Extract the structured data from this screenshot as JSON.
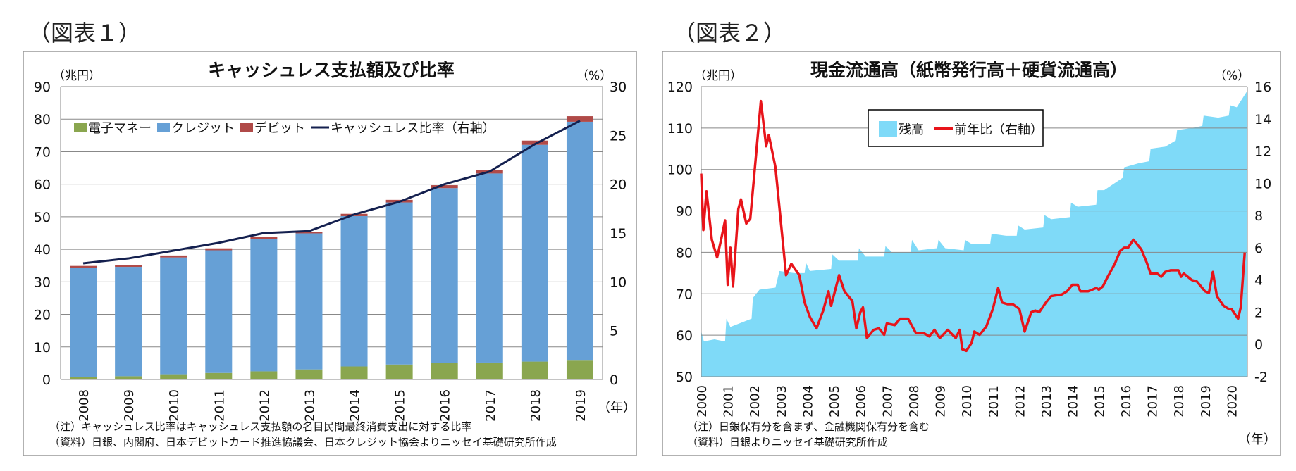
{
  "figures": [
    {
      "label": "（図表１）"
    },
    {
      "label": "（図表２）"
    }
  ],
  "chart_data": [
    {
      "type": "bar",
      "stacked": true,
      "title": "キャッシュレス支払額及び比率",
      "left_unit": "（兆円）",
      "right_unit": "（%）",
      "x_unit": "（年）",
      "categories": [
        "2008",
        "2009",
        "2010",
        "2011",
        "2012",
        "2013",
        "2014",
        "2015",
        "2016",
        "2017",
        "2018",
        "2019"
      ],
      "ylim": [
        0,
        90
      ],
      "y_ticks": [
        "0",
        "10",
        "20",
        "30",
        "40",
        "50",
        "60",
        "70",
        "80",
        "90"
      ],
      "y2lim": [
        0,
        30
      ],
      "y2_ticks": [
        "0",
        "5",
        "10",
        "15",
        "20",
        "25",
        "30"
      ],
      "grid": true,
      "legend": "top-left",
      "series": [
        {
          "name": "電子マネー",
          "kind": "bar",
          "color": "#8aa64f",
          "values": [
            0.8,
            1.0,
            1.6,
            2.0,
            2.5,
            3.1,
            4.0,
            4.6,
            5.1,
            5.2,
            5.5,
            5.8
          ]
        },
        {
          "name": "クレジット",
          "kind": "bar",
          "color": "#66a0d6",
          "values": [
            33.5,
            33.6,
            35.9,
            37.7,
            40.6,
            41.8,
            46.2,
            49.8,
            53.7,
            58.1,
            66.6,
            73.4
          ]
        },
        {
          "name": "デビット",
          "kind": "bar",
          "color": "#b04a48",
          "values": [
            0.6,
            0.6,
            0.6,
            0.6,
            0.6,
            0.5,
            0.7,
            0.8,
            0.9,
            1.1,
            1.3,
            1.7
          ]
        },
        {
          "name": "キャッシュレス比率（右軸）",
          "kind": "line",
          "axis": "right",
          "color": "#14204f",
          "values": [
            11.9,
            12.4,
            13.2,
            14.0,
            15.0,
            15.2,
            16.9,
            18.2,
            20.0,
            21.3,
            24.1,
            26.5
          ]
        }
      ],
      "notes": [
        "（注）キャッシュレス比率はキャッシュレス支払額の名目民間最終消費支出に対する比率",
        "（資料）日銀、内閣府、日本デビットカード推進協議会、日本クレジット協会よりニッセイ基礎研究所作成"
      ]
    },
    {
      "type": "area",
      "title": "現金流通高（紙幣発行高＋硬貨流通高）",
      "left_unit": "（兆円）",
      "right_unit": "（%）",
      "x_unit": "（年）",
      "x_ticks": [
        "2000",
        "2001",
        "2002",
        "2003",
        "2004",
        "2005",
        "2006",
        "2007",
        "2008",
        "2009",
        "2010",
        "2011",
        "2012",
        "2013",
        "2014",
        "2015",
        "2016",
        "2017",
        "2018",
        "2019",
        "2020"
      ],
      "xlim": [
        2000,
        2020.6
      ],
      "ylim": [
        50,
        120
      ],
      "y_ticks": [
        "50",
        "60",
        "70",
        "80",
        "90",
        "100",
        "110",
        "120"
      ],
      "y2lim": [
        -2,
        16
      ],
      "y2_ticks": [
        "-2",
        "0",
        "2",
        "4",
        "6",
        "8",
        "10",
        "12",
        "14",
        "16"
      ],
      "grid": true,
      "legend": "top-center",
      "series": [
        {
          "name": "残高",
          "kind": "area",
          "color": "#7fdaf8",
          "points": [
            [
              2000,
              61
            ],
            [
              2000.1,
              58.5
            ],
            [
              2000.5,
              59
            ],
            [
              2000.9,
              58.5
            ],
            [
              2000.95,
              64
            ],
            [
              2001.1,
              62
            ],
            [
              2001.5,
              63
            ],
            [
              2001.9,
              64
            ],
            [
              2001.95,
              69
            ],
            [
              2002.2,
              71
            ],
            [
              2002.8,
              71.5
            ],
            [
              2002.95,
              75.5
            ],
            [
              2003.5,
              75
            ],
            [
              2003.9,
              75
            ],
            [
              2003.95,
              77.5
            ],
            [
              2004.1,
              75.5
            ],
            [
              2004.9,
              76
            ],
            [
              2004.95,
              79.5
            ],
            [
              2005.2,
              78
            ],
            [
              2005.9,
              78
            ],
            [
              2005.95,
              81
            ],
            [
              2006.2,
              79
            ],
            [
              2006.9,
              79
            ],
            [
              2006.95,
              81.5
            ],
            [
              2007.2,
              80
            ],
            [
              2007.9,
              80
            ],
            [
              2007.95,
              83
            ],
            [
              2008.2,
              80.5
            ],
            [
              2008.9,
              81
            ],
            [
              2008.95,
              83
            ],
            [
              2009.2,
              81
            ],
            [
              2009.9,
              80.5
            ],
            [
              2009.95,
              83
            ],
            [
              2010.2,
              82
            ],
            [
              2010.9,
              82
            ],
            [
              2010.95,
              84.5
            ],
            [
              2011.5,
              84
            ],
            [
              2011.9,
              84
            ],
            [
              2011.95,
              86.5
            ],
            [
              2012.2,
              85.5
            ],
            [
              2012.9,
              86
            ],
            [
              2012.95,
              89
            ],
            [
              2013.2,
              88
            ],
            [
              2013.9,
              88.5
            ],
            [
              2013.95,
              92
            ],
            [
              2014.2,
              91
            ],
            [
              2014.9,
              91.5
            ],
            [
              2014.95,
              95
            ],
            [
              2015.2,
              95
            ],
            [
              2015.9,
              98
            ],
            [
              2015.95,
              100.5
            ],
            [
              2016.5,
              101.5
            ],
            [
              2016.9,
              102
            ],
            [
              2016.95,
              105
            ],
            [
              2017.5,
              105.5
            ],
            [
              2017.9,
              107
            ],
            [
              2017.95,
              109.5
            ],
            [
              2018.5,
              110
            ],
            [
              2018.9,
              110.5
            ],
            [
              2018.95,
              113
            ],
            [
              2019.5,
              112.5
            ],
            [
              2019.9,
              113
            ],
            [
              2019.95,
              115.5
            ],
            [
              2020.2,
              115
            ],
            [
              2020.6,
              119
            ]
          ]
        },
        {
          "name": "前年比（右軸）",
          "kind": "line",
          "axis": "right",
          "color": "#e8141a",
          "points": [
            [
              2000,
              10.6
            ],
            [
              2000.08,
              7.1
            ],
            [
              2000.2,
              9.5
            ],
            [
              2000.4,
              6.5
            ],
            [
              2000.6,
              5.4
            ],
            [
              2000.75,
              6.5
            ],
            [
              2000.9,
              7.7
            ],
            [
              2001,
              3.7
            ],
            [
              2001.1,
              6
            ],
            [
              2001.2,
              3.6
            ],
            [
              2001.4,
              8.4
            ],
            [
              2001.5,
              9
            ],
            [
              2001.7,
              7.5
            ],
            [
              2001.85,
              7.8
            ],
            [
              2002,
              10.5
            ],
            [
              2002.25,
              15.1
            ],
            [
              2002.45,
              12.3
            ],
            [
              2002.55,
              13
            ],
            [
              2002.8,
              11
            ],
            [
              2002.95,
              8.5
            ],
            [
              2003.1,
              6
            ],
            [
              2003.2,
              4.3
            ],
            [
              2003.4,
              5
            ],
            [
              2003.7,
              4.3
            ],
            [
              2003.9,
              2.6
            ],
            [
              2004.1,
              1.7
            ],
            [
              2004.35,
              1
            ],
            [
              2004.6,
              2.1
            ],
            [
              2004.8,
              3.3
            ],
            [
              2004.9,
              2.4
            ],
            [
              2005.2,
              4.3
            ],
            [
              2005.4,
              3.3
            ],
            [
              2005.7,
              2.7
            ],
            [
              2005.85,
              1
            ],
            [
              2006,
              2
            ],
            [
              2006.1,
              2.3
            ],
            [
              2006.25,
              0.4
            ],
            [
              2006.5,
              0.9
            ],
            [
              2006.7,
              1
            ],
            [
              2006.9,
              0.6
            ],
            [
              2007,
              1.3
            ],
            [
              2007.3,
              1.2
            ],
            [
              2007.5,
              1.6
            ],
            [
              2007.8,
              1.6
            ],
            [
              2008.1,
              0.7
            ],
            [
              2008.4,
              0.7
            ],
            [
              2008.6,
              0.5
            ],
            [
              2008.8,
              0.9
            ],
            [
              2009,
              0.4
            ],
            [
              2009.3,
              0.9
            ],
            [
              2009.6,
              0.4
            ],
            [
              2009.75,
              0.9
            ],
            [
              2009.85,
              -0.3
            ],
            [
              2010,
              -0.4
            ],
            [
              2010.2,
              0.1
            ],
            [
              2010.3,
              0.8
            ],
            [
              2010.5,
              0.6
            ],
            [
              2010.75,
              1.1
            ],
            [
              2011,
              2.2
            ],
            [
              2011.2,
              3.5
            ],
            [
              2011.35,
              2.6
            ],
            [
              2011.55,
              2.5
            ],
            [
              2011.75,
              2.5
            ],
            [
              2012,
              2.2
            ],
            [
              2012.2,
              0.8
            ],
            [
              2012.45,
              2
            ],
            [
              2012.6,
              2.1
            ],
            [
              2012.75,
              2
            ],
            [
              2013,
              2.6
            ],
            [
              2013.2,
              3
            ],
            [
              2013.6,
              3.1
            ],
            [
              2013.8,
              3.3
            ],
            [
              2014,
              3.7
            ],
            [
              2014.2,
              3.7
            ],
            [
              2014.3,
              3.3
            ],
            [
              2014.6,
              3.3
            ],
            [
              2014.9,
              3.5
            ],
            [
              2015,
              3.4
            ],
            [
              2015.15,
              3.6
            ],
            [
              2015.3,
              4.1
            ],
            [
              2015.6,
              5
            ],
            [
              2015.8,
              5.8
            ],
            [
              2015.95,
              6
            ],
            [
              2016.1,
              6
            ],
            [
              2016.3,
              6.5
            ],
            [
              2016.6,
              5.9
            ],
            [
              2016.8,
              5.1
            ],
            [
              2016.95,
              4.4
            ],
            [
              2017.2,
              4.4
            ],
            [
              2017.35,
              4.2
            ],
            [
              2017.5,
              4.5
            ],
            [
              2017.7,
              4.6
            ],
            [
              2017.85,
              4.6
            ],
            [
              2018,
              4.6
            ],
            [
              2018.1,
              4.2
            ],
            [
              2018.2,
              4.4
            ],
            [
              2018.5,
              4
            ],
            [
              2018.7,
              3.9
            ],
            [
              2018.8,
              3.7
            ],
            [
              2019,
              3.3
            ],
            [
              2019.15,
              3.2
            ],
            [
              2019.3,
              4.5
            ],
            [
              2019.45,
              3
            ],
            [
              2019.7,
              2.4
            ],
            [
              2019.9,
              2.2
            ],
            [
              2020,
              2.2
            ],
            [
              2020.25,
              1.6
            ],
            [
              2020.35,
              2.3
            ],
            [
              2020.5,
              5.7
            ]
          ]
        }
      ],
      "notes": [
        "（注）日銀保有分を含まず、金融機関保有分を含む",
        "（資料）日銀よりニッセイ基礎研究所作成"
      ]
    }
  ]
}
